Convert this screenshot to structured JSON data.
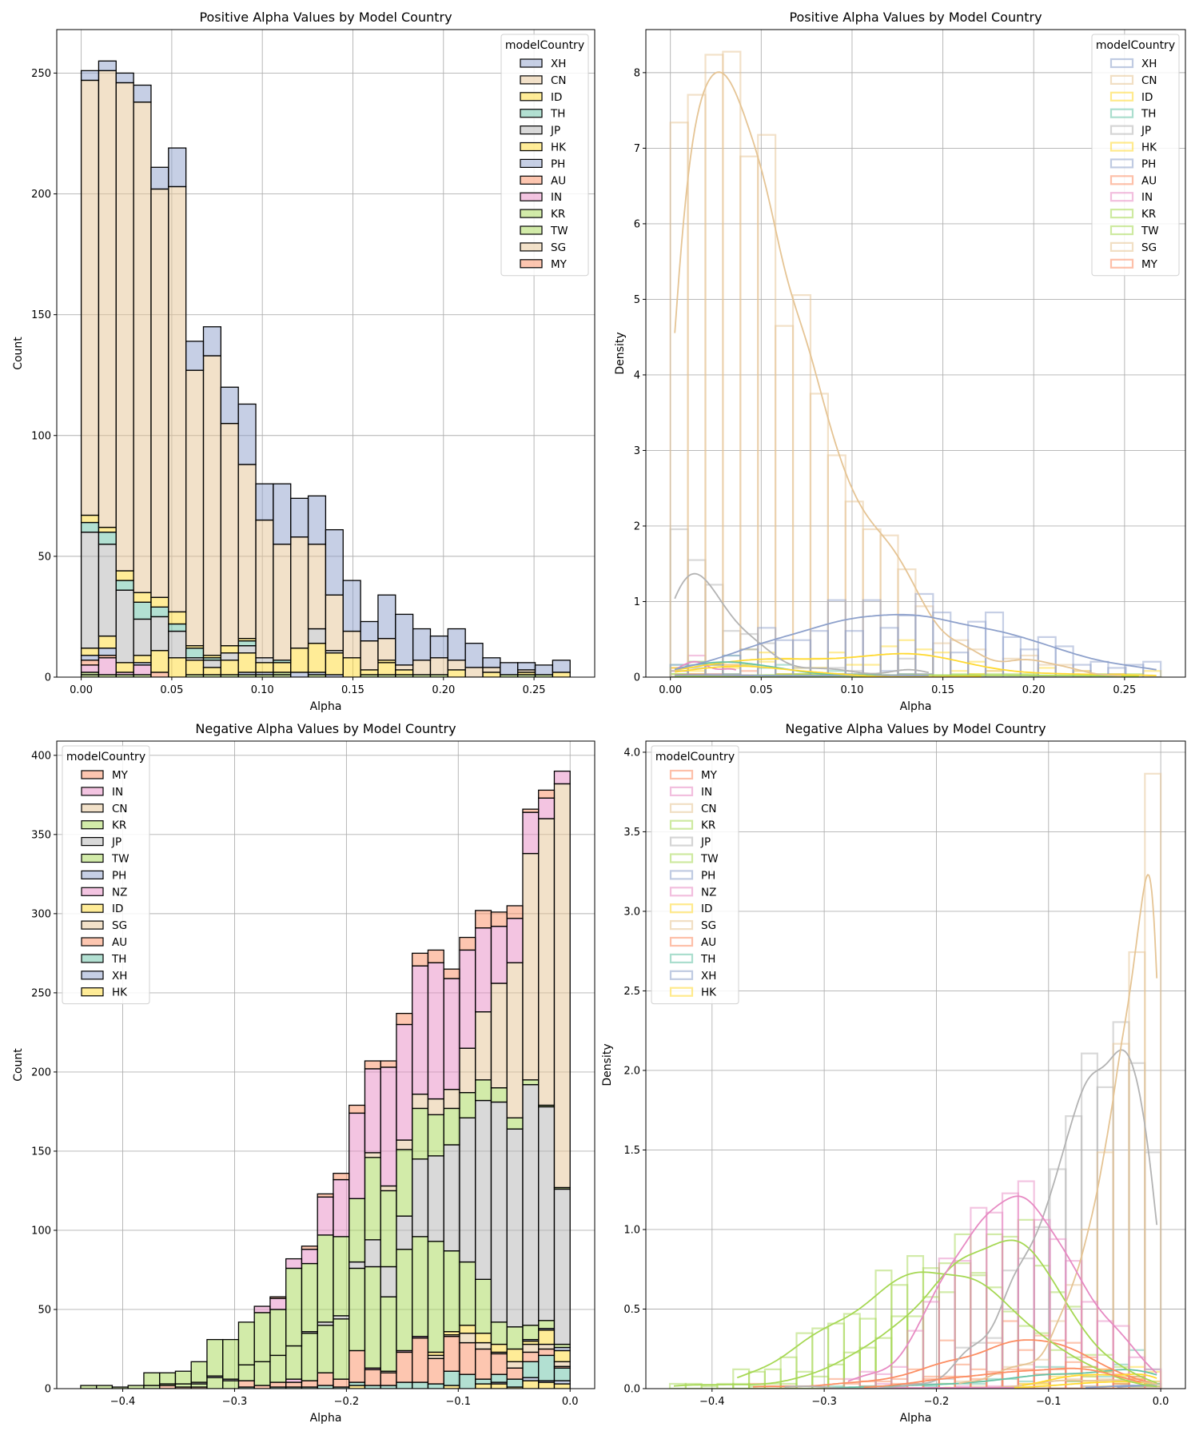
{
  "colors": {
    "XH": "#8da0cb",
    "CN": "#e5c494",
    "ID": "#ffd92f",
    "TH": "#66c2a5",
    "JP": "#b3b3b3",
    "HK": "#ffd92f",
    "PH": "#8da0cb",
    "AU": "#fc8d62",
    "IN": "#e78ac3",
    "KR": "#a6d854",
    "TW": "#a6d854",
    "SG": "#e5c494",
    "MY": "#fc8d62",
    "NZ": "#e78ac3"
  },
  "chart_data": [
    {
      "type": "bar",
      "stacked": true,
      "stat": "count",
      "title": "Positive Alpha Values by Model Country",
      "xlabel": "Alpha",
      "ylabel": "Count",
      "xlim": [
        -0.0135,
        0.2835
      ],
      "ylim": [
        0,
        268
      ],
      "xticks": [
        0,
        0.05,
        0.1,
        0.15,
        0.2,
        0.25
      ],
      "xtick_labels": [
        "0.00",
        "0.05",
        "0.10",
        "0.15",
        "0.20",
        "0.25"
      ],
      "yticks": [
        0,
        50,
        100,
        150,
        200,
        250
      ],
      "ytick_labels": [
        "0",
        "50",
        "100",
        "150",
        "200",
        "250"
      ],
      "grid": true,
      "bin_start": 0,
      "bin_width": 0.00964,
      "legend": {
        "title": "modelCountry",
        "position": "upper right",
        "entries": [
          "XH",
          "CN",
          "ID",
          "TH",
          "JP",
          "HK",
          "PH",
          "AU",
          "IN",
          "KR",
          "TW",
          "SG",
          "MY"
        ]
      },
      "series": [
        {
          "name": "XH",
          "values": [
            4,
            4,
            4,
            7,
            9,
            16,
            12,
            12,
            15,
            25,
            15,
            25,
            16,
            20,
            27,
            21,
            8,
            18,
            21,
            13,
            9,
            13,
            10,
            4,
            5,
            3,
            4,
            5
          ]
        },
        {
          "name": "CN",
          "values": [
            180,
            189,
            202,
            203,
            169,
            176,
            114,
            124,
            92,
            72,
            57,
            48,
            46,
            35,
            23,
            11,
            12,
            9,
            2,
            6,
            7,
            4,
            4,
            2,
            0,
            1,
            0,
            0
          ]
        },
        {
          "name": "ID",
          "values": [
            3,
            2,
            4,
            4,
            4,
            5,
            1,
            1,
            3,
            1,
            0,
            0,
            0,
            0,
            0,
            0,
            0,
            1,
            0,
            0,
            0,
            0,
            0,
            0,
            0,
            0,
            0,
            0
          ]
        },
        {
          "name": "TH",
          "values": [
            4,
            5,
            4,
            7,
            4,
            3,
            4,
            1,
            0,
            2,
            0,
            1,
            0,
            0,
            0,
            0,
            0,
            0,
            0,
            0,
            0,
            0,
            0,
            0,
            0,
            0,
            0,
            0
          ]
        },
        {
          "name": "JP",
          "values": [
            48,
            38,
            30,
            15,
            14,
            11,
            1,
            3,
            3,
            3,
            2,
            0,
            0,
            6,
            1,
            0,
            0,
            0,
            0,
            0,
            0,
            0,
            0,
            0,
            0,
            0,
            0,
            0
          ]
        },
        {
          "name": "HK",
          "values": [
            3,
            5,
            4,
            3,
            9,
            8,
            6,
            3,
            6,
            8,
            4,
            4,
            10,
            12,
            9,
            8,
            2,
            5,
            2,
            0,
            0,
            3,
            0,
            2,
            0,
            1,
            0,
            2
          ]
        },
        {
          "name": "PH",
          "values": [
            2,
            3,
            0,
            1,
            0,
            0,
            0,
            0,
            0,
            1,
            1,
            0,
            2,
            1,
            1,
            0,
            0,
            0,
            0,
            0,
            0,
            0,
            0,
            0,
            0,
            0,
            0,
            0
          ]
        },
        {
          "name": "AU",
          "values": [
            2,
            1,
            0,
            0,
            2,
            0,
            0,
            0,
            0,
            0,
            0,
            0,
            0,
            0,
            0,
            0,
            0,
            0,
            0,
            0,
            0,
            0,
            0,
            0,
            0,
            0,
            0,
            0
          ]
        },
        {
          "name": "IN",
          "values": [
            3,
            7,
            1,
            4,
            0,
            0,
            0,
            0,
            0,
            0,
            0,
            0,
            0,
            0,
            0,
            0,
            0,
            0,
            0,
            0,
            0,
            0,
            0,
            0,
            0,
            0,
            0,
            0
          ]
        },
        {
          "name": "KR",
          "values": [
            1,
            1,
            1,
            1,
            0,
            0,
            1,
            1,
            1,
            1,
            1,
            1,
            0,
            1,
            0,
            0,
            1,
            1,
            1,
            1,
            1,
            0,
            0,
            0,
            1,
            1,
            1,
            0
          ]
        },
        {
          "name": "TW",
          "values": [
            1,
            0,
            0,
            0,
            0,
            0,
            0,
            0,
            0,
            0,
            0,
            1,
            0,
            0,
            0,
            0,
            0,
            0,
            0,
            0,
            0,
            0,
            0,
            0,
            0,
            0,
            0,
            0
          ]
        },
        {
          "name": "SG",
          "values": [
            0,
            0,
            0,
            0,
            0,
            0,
            0,
            0,
            0,
            0,
            0,
            0,
            0,
            0,
            0,
            0,
            0,
            0,
            0,
            0,
            0,
            0,
            0,
            0,
            0,
            0,
            0,
            0
          ]
        },
        {
          "name": "MY",
          "values": [
            0,
            0,
            0,
            0,
            0,
            0,
            0,
            0,
            0,
            0,
            0,
            0,
            0,
            0,
            0,
            0,
            0,
            0,
            0,
            0,
            0,
            0,
            0,
            0,
            0,
            0,
            0,
            0
          ]
        }
      ]
    },
    {
      "type": "histogram-density-kde",
      "stat": "density",
      "source_chart": 0,
      "title": "Positive Alpha Values by Model Country",
      "xlabel": "Alpha",
      "ylabel": "Density",
      "xlim": [
        -0.0135,
        0.2835
      ],
      "ylim": [
        0,
        8.57
      ],
      "xticks": [
        0,
        0.05,
        0.1,
        0.15,
        0.2,
        0.25
      ],
      "xtick_labels": [
        "0.00",
        "0.05",
        "0.10",
        "0.15",
        "0.20",
        "0.25"
      ],
      "yticks": [
        0,
        1,
        2,
        3,
        4,
        5,
        6,
        7,
        8
      ],
      "ytick_labels": [
        "0",
        "1",
        "2",
        "3",
        "4",
        "5",
        "6",
        "7",
        "8"
      ],
      "grid": true,
      "legend": {
        "title": "modelCountry",
        "position": "upper right",
        "entries": [
          "XH",
          "CN",
          "ID",
          "TH",
          "JP",
          "HK",
          "PH",
          "AU",
          "IN",
          "KR",
          "TW",
          "SG",
          "MY"
        ]
      }
    },
    {
      "type": "bar",
      "stacked": true,
      "stat": "count",
      "title": "Negative Alpha Values by Model Country",
      "xlabel": "Alpha",
      "ylabel": "Count",
      "xlim": [
        -0.459,
        0.022
      ],
      "ylim": [
        0,
        409
      ],
      "xticks": [
        -0.4,
        -0.3,
        -0.2,
        -0.1,
        0
      ],
      "xtick_labels": [
        "−0.4",
        "−0.3",
        "−0.2",
        "−0.1",
        "0.0"
      ],
      "yticks": [
        0,
        50,
        100,
        150,
        200,
        250,
        300,
        350,
        400
      ],
      "ytick_labels": [
        "0",
        "50",
        "100",
        "150",
        "200",
        "250",
        "300",
        "350",
        "400"
      ],
      "grid": true,
      "bin_start": -0.4376,
      "bin_width": 0.014116,
      "legend": {
        "title": "modelCountry",
        "position": "upper left",
        "entries": [
          "MY",
          "IN",
          "CN",
          "KR",
          "JP",
          "TW",
          "PH",
          "NZ",
          "ID",
          "SG",
          "AU",
          "TH",
          "XH",
          "HK"
        ]
      },
      "series": [
        {
          "name": "MY",
          "values": [
            0,
            0,
            0,
            0,
            0,
            0,
            0,
            0,
            0,
            0,
            0,
            0,
            1,
            0,
            2,
            2,
            4,
            5,
            5,
            4,
            7,
            8,
            8,
            6,
            8,
            11,
            9,
            8,
            2,
            5,
            0
          ]
        },
        {
          "name": "IN",
          "values": [
            0,
            0,
            0,
            0,
            0,
            0,
            0,
            0,
            0,
            0,
            0,
            4,
            7,
            6,
            9,
            24,
            36,
            54,
            53,
            75,
            73,
            81,
            86,
            70,
            62,
            53,
            36,
            28,
            26,
            13,
            8
          ]
        },
        {
          "name": "CN",
          "values": [
            0,
            0,
            0,
            0,
            0,
            0,
            0,
            0,
            0,
            0,
            0,
            0,
            0,
            0,
            0,
            0,
            0,
            0,
            3,
            3,
            6,
            9,
            10,
            12,
            28,
            43,
            66,
            98,
            143,
            181,
            255
          ]
        },
        {
          "name": "KR",
          "values": [
            0,
            0,
            0,
            0,
            8,
            7,
            8,
            13,
            23,
            25,
            27,
            31,
            29,
            49,
            43,
            55,
            50,
            40,
            52,
            48,
            42,
            32,
            26,
            23,
            16,
            13,
            9,
            7,
            3,
            1,
            1
          ]
        },
        {
          "name": "JP",
          "values": [
            0,
            0,
            0,
            0,
            0,
            0,
            0,
            1,
            1,
            1,
            0,
            0,
            0,
            0,
            1,
            2,
            2,
            4,
            17,
            19,
            21,
            49,
            54,
            67,
            91,
            113,
            139,
            125,
            152,
            135,
            98
          ]
        },
        {
          "name": "TW",
          "values": [
            2,
            2,
            1,
            2,
            2,
            1,
            2,
            2,
            7,
            5,
            10,
            15,
            17,
            21,
            30,
            30,
            38,
            52,
            64,
            47,
            64,
            63,
            70,
            51,
            40,
            34,
            14,
            14,
            9,
            5,
            2
          ]
        },
        {
          "name": "PH",
          "values": [
            0,
            0,
            0,
            0,
            0,
            0,
            0,
            0,
            0,
            0,
            0,
            0,
            0,
            0,
            0,
            0,
            0,
            0,
            0,
            0,
            0,
            0,
            0,
            0,
            0,
            0,
            0,
            0,
            1,
            1,
            2
          ]
        },
        {
          "name": "NZ",
          "values": [
            0,
            0,
            0,
            0,
            0,
            0,
            0,
            0,
            0,
            0,
            0,
            0,
            0,
            2,
            0,
            0,
            0,
            0,
            1,
            0,
            1,
            1,
            0,
            0,
            0,
            0,
            0,
            0,
            0,
            0,
            0
          ]
        },
        {
          "name": "ID",
          "values": [
            0,
            0,
            0,
            0,
            0,
            0,
            0,
            0,
            0,
            0,
            0,
            0,
            0,
            0,
            0,
            0,
            0,
            0,
            0,
            0,
            0,
            0,
            2,
            2,
            5,
            6,
            5,
            8,
            2,
            9,
            7
          ]
        },
        {
          "name": "SG",
          "values": [
            0,
            0,
            0,
            0,
            0,
            0,
            0,
            0,
            0,
            0,
            0,
            0,
            0,
            0,
            0,
            0,
            0,
            0,
            0,
            1,
            0,
            0,
            2,
            1,
            6,
            4,
            1,
            4,
            5,
            3,
            3
          ]
        },
        {
          "name": "AU",
          "values": [
            0,
            0,
            0,
            0,
            0,
            2,
            1,
            1,
            0,
            0,
            4,
            2,
            3,
            3,
            4,
            8,
            5,
            20,
            10,
            8,
            19,
            28,
            16,
            22,
            20,
            19,
            13,
            7,
            6,
            4,
            1
          ]
        },
        {
          "name": "TH",
          "values": [
            0,
            0,
            0,
            0,
            0,
            0,
            0,
            0,
            0,
            0,
            1,
            0,
            1,
            1,
            1,
            2,
            1,
            2,
            2,
            2,
            4,
            4,
            3,
            9,
            9,
            3,
            5,
            5,
            10,
            16,
            8
          ]
        },
        {
          "name": "XH",
          "values": [
            0,
            0,
            0,
            0,
            0,
            0,
            0,
            0,
            0,
            0,
            0,
            0,
            0,
            0,
            0,
            0,
            0,
            0,
            0,
            0,
            0,
            0,
            0,
            0,
            0,
            0,
            1,
            0,
            2,
            1,
            2
          ]
        },
        {
          "name": "HK",
          "values": [
            0,
            0,
            0,
            0,
            0,
            0,
            0,
            0,
            0,
            0,
            0,
            0,
            0,
            0,
            0,
            0,
            0,
            2,
            0,
            0,
            0,
            0,
            0,
            2,
            0,
            3,
            3,
            1,
            5,
            4,
            3
          ]
        }
      ]
    },
    {
      "type": "histogram-density-kde",
      "stat": "density",
      "source_chart": 2,
      "title": "Negative Alpha Values by Model Country",
      "xlabel": "Alpha",
      "ylabel": "Density",
      "xlim": [
        -0.459,
        0.022
      ],
      "ylim": [
        0,
        4.07
      ],
      "xticks": [
        -0.4,
        -0.3,
        -0.2,
        -0.1,
        0
      ],
      "xtick_labels": [
        "−0.4",
        "−0.3",
        "−0.2",
        "−0.1",
        "0.0"
      ],
      "yticks": [
        0,
        0.5,
        1,
        1.5,
        2,
        2.5,
        3,
        3.5,
        4
      ],
      "ytick_labels": [
        "0.0",
        "0.5",
        "1.0",
        "1.5",
        "2.0",
        "2.5",
        "3.0",
        "3.5",
        "4.0"
      ],
      "grid": true,
      "legend": {
        "title": "modelCountry",
        "position": "upper left",
        "entries": [
          "MY",
          "IN",
          "CN",
          "KR",
          "JP",
          "TW",
          "PH",
          "NZ",
          "ID",
          "SG",
          "AU",
          "TH",
          "XH",
          "HK"
        ]
      }
    }
  ]
}
